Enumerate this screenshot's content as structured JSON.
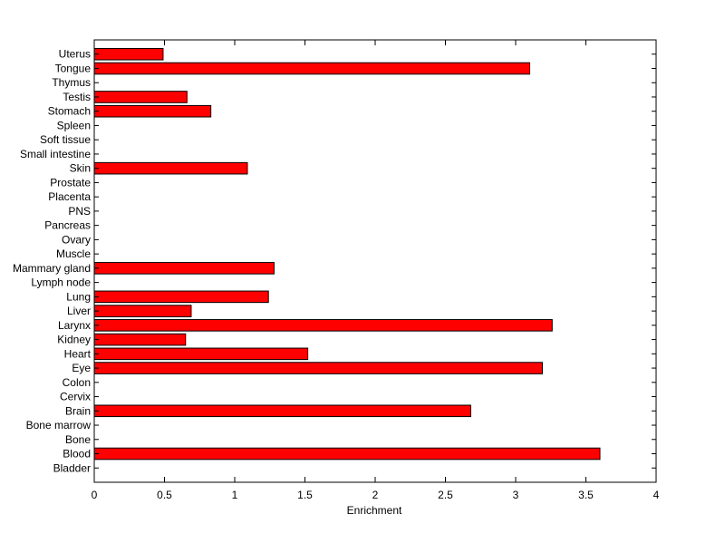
{
  "chart_data": {
    "type": "bar",
    "orientation": "horizontal",
    "categories": [
      "Bladder",
      "Blood",
      "Bone",
      "Bone marrow",
      "Brain",
      "Cervix",
      "Colon",
      "Eye",
      "Heart",
      "Kidney",
      "Larynx",
      "Liver",
      "Lung",
      "Lymph node",
      "Mammary gland",
      "Muscle",
      "Ovary",
      "Pancreas",
      "PNS",
      "Placenta",
      "Prostate",
      "Skin",
      "Small intestine",
      "Soft tissue",
      "Spleen",
      "Stomach",
      "Testis",
      "Thymus",
      "Tongue",
      "Uterus"
    ],
    "values": [
      0,
      3.6,
      0,
      0,
      2.68,
      0,
      0,
      3.19,
      1.52,
      0.65,
      3.26,
      0.69,
      1.24,
      0,
      1.28,
      0,
      0,
      0,
      0,
      0,
      0,
      1.09,
      0,
      0,
      0,
      0.83,
      0.66,
      0,
      3.1,
      0.49
    ],
    "title": "",
    "xlabel": "Enrichment",
    "ylabel": "",
    "xlim": [
      0,
      4
    ],
    "xticks": [
      "0",
      "0.5",
      "1",
      "1.5",
      "2",
      "2.5",
      "3",
      "3.5",
      "4"
    ],
    "bar_color": "#ff0000",
    "grid": false,
    "legend": "none"
  }
}
